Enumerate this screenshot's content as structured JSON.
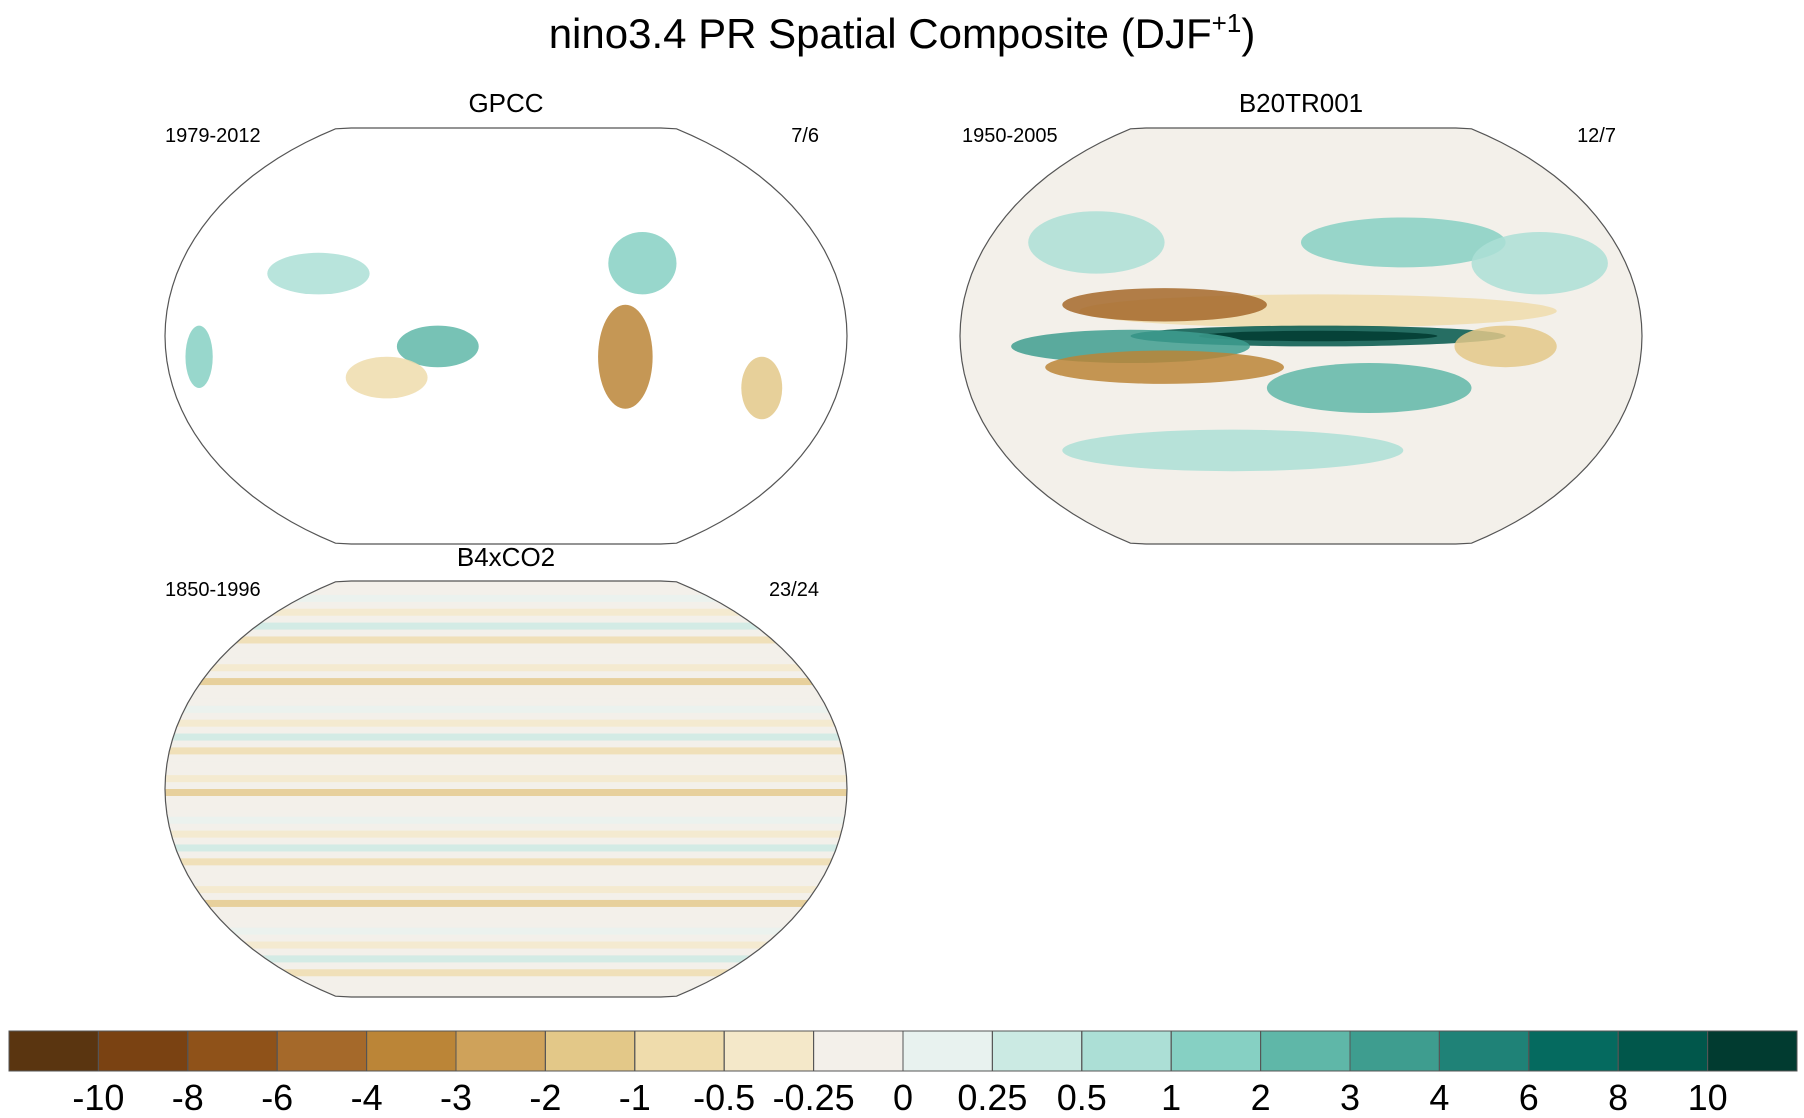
{
  "title": {
    "main": "nino3.4 PR Spatial Composite (DJF",
    "superscript": "+1",
    "end": ")"
  },
  "panels": [
    {
      "title": "GPCC",
      "period": "1979-2012",
      "count": "7/6"
    },
    {
      "title": "B20TR001",
      "period": "1950-2005",
      "count": "12/7"
    },
    {
      "title": "B4xCO2",
      "period": "1850-1996",
      "count": "23/24"
    }
  ],
  "colorbar": {
    "levels": [
      -10,
      -8,
      -6,
      -4,
      -3,
      -2,
      -1,
      -0.5,
      -0.25,
      0,
      0.25,
      0.5,
      1,
      2,
      3,
      4,
      6,
      8,
      10
    ],
    "colors": [
      "#5a3510",
      "#7a4212",
      "#8f5219",
      "#a5692a",
      "#bb8537",
      "#cfa25a",
      "#e3c888",
      "#efdcac",
      "#f4e8c9",
      "#f3f0ea",
      "#e8f2ef",
      "#cbeae3",
      "#acdfd6",
      "#86d0c3",
      "#5fb7a8",
      "#3e9d8f",
      "#1f8277",
      "#056a5f",
      "#01574b",
      "#013b30"
    ]
  }
}
